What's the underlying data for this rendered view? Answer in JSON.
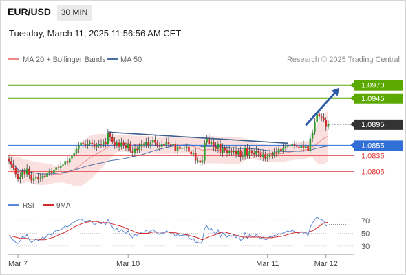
{
  "header": {
    "symbol": "EUR/USD",
    "timeframe": "30 MIN",
    "timestamp": "Tuesday, March 11, 2025 11:56:56 AM CET"
  },
  "legend": {
    "ma20": "MA 20 + Bollinger Bands",
    "ma50": "MA 50",
    "copyright": "Research © 2025 Trading Central"
  },
  "rsi_legend": {
    "rsi": "RSI",
    "ma": "9MA"
  },
  "colors": {
    "resistance": "#5aa800",
    "current": "#333333",
    "pivot": "#2f6fd6",
    "support": "#e23a3a",
    "candle_up": "#2e9e2e",
    "candle_down": "#d22b2b",
    "bollinger_fill": "#fad6d6",
    "ma20": "#f08a8a",
    "ma50": "#4a6fa5",
    "trendline": "#3a5f8f",
    "arrow": "#2f5aa6",
    "rsi": "#5b87d6",
    "rsi_ma": "#d22b2b"
  },
  "chart_data": [
    {
      "type": "candlestick",
      "ylim": [
        1.0765,
        1.1005
      ],
      "xlabels": [
        "Mar 7",
        "Mar 10",
        "Mar 11",
        "Mar 12"
      ],
      "levels": [
        {
          "value": 1.097,
          "label": "1.0970",
          "kind": "resistance"
        },
        {
          "value": 1.0945,
          "label": "1.0945",
          "kind": "resistance"
        },
        {
          "value": 1.0895,
          "label": "1.0895",
          "kind": "current"
        },
        {
          "value": 1.0855,
          "label": "1.0855",
          "kind": "pivot"
        },
        {
          "value": 1.0835,
          "label": "1.0835",
          "kind": "support"
        },
        {
          "value": 1.0805,
          "label": "1.0805",
          "kind": "support"
        }
      ],
      "trendline": [
        [
          44,
          1.088
        ],
        [
          124,
          1.0859
        ]
      ],
      "arrow": [
        [
          132,
          1.0893
        ],
        [
          147,
          1.0965
        ]
      ],
      "closes": [
        1.0825,
        1.0818,
        1.0812,
        1.08,
        1.079,
        1.0795,
        1.0805,
        1.08,
        1.081,
        1.0798,
        1.0788,
        1.0792,
        1.0794,
        1.079,
        1.0792,
        1.0797,
        1.0795,
        1.0802,
        1.0805,
        1.0803,
        1.0808,
        1.0813,
        1.0812,
        1.0815,
        1.0818,
        1.0825,
        1.0822,
        1.083,
        1.0835,
        1.084,
        1.0848,
        1.0855,
        1.086,
        1.0858,
        1.0855,
        1.0858,
        1.086,
        1.0857,
        1.0852,
        1.0855,
        1.0858,
        1.0856,
        1.0862,
        1.0858,
        1.0878,
        1.087,
        1.0862,
        1.0855,
        1.086,
        1.0852,
        1.086,
        1.0855,
        1.085,
        1.0858,
        1.0845,
        1.084,
        1.0848,
        1.0846,
        1.0852,
        1.0856,
        1.0856,
        1.0862,
        1.0855,
        1.086,
        1.0865,
        1.086,
        1.0855,
        1.0852,
        1.0857,
        1.0855,
        1.0862,
        1.0858,
        1.0855,
        1.0857,
        1.0845,
        1.0852,
        1.0848,
        1.085,
        1.085,
        1.0852,
        1.0843,
        1.0838,
        1.084,
        1.0826,
        1.0826,
        1.0822,
        1.0826,
        1.086,
        1.0868,
        1.0858,
        1.0862,
        1.0852,
        1.0848,
        1.0858,
        1.084,
        1.085,
        1.0846,
        1.084,
        1.0845,
        1.0842,
        1.0845,
        1.0838,
        1.0845,
        1.0832,
        1.0834,
        1.085,
        1.0835,
        1.0845,
        1.084,
        1.0838,
        1.0845,
        1.084,
        1.0832,
        1.0838,
        1.083,
        1.0832,
        1.0838,
        1.0836,
        1.0842,
        1.084,
        1.0848,
        1.0845,
        1.085,
        1.0852,
        1.0855,
        1.0853,
        1.0857,
        1.0855,
        1.0852,
        1.085,
        1.0855,
        1.085,
        1.0853,
        1.0845,
        1.0868,
        1.088,
        1.09,
        1.0915,
        1.091,
        1.0908,
        1.0904,
        1.089,
        1.0895
      ]
    },
    {
      "type": "line",
      "title": "RSI",
      "ylim": [
        20,
        80
      ],
      "yticks": [
        70,
        50,
        30
      ],
      "series": [
        {
          "name": "RSI",
          "values": [
            46,
            43,
            39,
            36,
            34,
            38,
            45,
            43,
            48,
            40,
            36,
            38,
            41,
            39,
            40,
            44,
            42,
            47,
            49,
            47,
            52,
            55,
            54,
            56,
            58,
            62,
            60,
            63,
            66,
            68,
            70,
            72,
            73,
            70,
            68,
            70,
            71,
            68,
            64,
            66,
            67,
            65,
            68,
            64,
            72,
            66,
            60,
            55,
            58,
            52,
            56,
            53,
            50,
            54,
            46,
            43,
            48,
            47,
            50,
            52,
            52,
            55,
            51,
            54,
            56,
            53,
            50,
            48,
            51,
            50,
            54,
            52,
            50,
            51,
            45,
            49,
            46,
            47,
            47,
            48,
            43,
            40,
            42,
            36,
            36,
            34,
            37,
            58,
            62,
            55,
            58,
            52,
            49,
            56,
            44,
            51,
            48,
            44,
            47,
            45,
            47,
            43,
            47,
            39,
            41,
            51,
            42,
            48,
            45,
            44,
            48,
            45,
            41,
            44,
            40,
            41,
            45,
            44,
            47,
            46,
            50,
            48,
            51,
            52,
            54,
            52,
            55,
            53,
            51,
            50,
            53,
            50,
            52,
            46,
            60,
            66,
            72,
            76,
            73,
            72,
            70,
            62,
            64
          ]
        },
        {
          "name": "9MA",
          "values": [
            46,
            46,
            45,
            44,
            43,
            42,
            42,
            42,
            42,
            41,
            41,
            41,
            41,
            41,
            40,
            40,
            40,
            41,
            42,
            43,
            44,
            46,
            47,
            49,
            50,
            52,
            54,
            56,
            58,
            60,
            62,
            63,
            65,
            66,
            67,
            68,
            69,
            69,
            69,
            69,
            68,
            67,
            67,
            67,
            67,
            66,
            65,
            64,
            63,
            62,
            61,
            60,
            58,
            57,
            55,
            54,
            52,
            51,
            50,
            50,
            50,
            50,
            50,
            51,
            52,
            52,
            52,
            52,
            52,
            52,
            52,
            52,
            51,
            51,
            51,
            50,
            49,
            49,
            48,
            48,
            47,
            46,
            45,
            44,
            43,
            41,
            40,
            41,
            43,
            45,
            46,
            47,
            48,
            50,
            51,
            52,
            52,
            51,
            50,
            49,
            48,
            47,
            46,
            45,
            44,
            44,
            44,
            44,
            44,
            44,
            44,
            44,
            44,
            43,
            43,
            43,
            43,
            43,
            44,
            44,
            45,
            45,
            46,
            47,
            48,
            49,
            50,
            51,
            51,
            51,
            52,
            52,
            52,
            52,
            53,
            54,
            56,
            59,
            61,
            64,
            66,
            67,
            68
          ]
        }
      ]
    }
  ]
}
